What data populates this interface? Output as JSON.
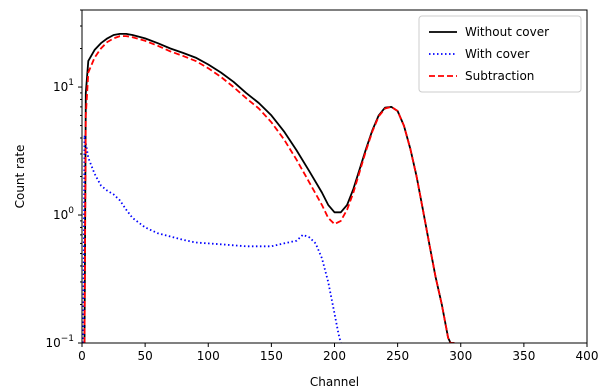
{
  "chart_data": {
    "type": "line",
    "xlabel": "Channel",
    "ylabel": "Count rate",
    "xlim": [
      0,
      400
    ],
    "ylim": [
      0.1,
      40
    ],
    "yscale": "log",
    "x_ticks": [
      0,
      50,
      100,
      150,
      200,
      250,
      300,
      350,
      400
    ],
    "y_ticks": [
      {
        "value": 0.1,
        "base": "10",
        "exp": "−1"
      },
      {
        "value": 1,
        "base": "10",
        "exp": "0"
      },
      {
        "value": 10,
        "base": "10",
        "exp": "1"
      }
    ],
    "grid": false,
    "legend_position": "top-right",
    "series": [
      {
        "name": "Without cover",
        "color": "#000000",
        "style": "solid",
        "x": [
          2,
          3,
          5,
          10,
          15,
          20,
          25,
          30,
          35,
          40,
          50,
          60,
          70,
          80,
          90,
          100,
          110,
          120,
          130,
          140,
          150,
          160,
          170,
          180,
          190,
          195,
          200,
          205,
          210,
          215,
          220,
          225,
          230,
          235,
          240,
          245,
          250,
          255,
          260,
          265,
          270,
          275,
          280,
          285,
          290,
          292,
          295
        ],
        "y": [
          0.1,
          9,
          16,
          19.5,
          22,
          24,
          25.5,
          26,
          26,
          25.5,
          24,
          22,
          20,
          18.5,
          17,
          15,
          13,
          11,
          9,
          7.5,
          6,
          4.5,
          3.2,
          2.2,
          1.5,
          1.2,
          1.05,
          1.05,
          1.2,
          1.6,
          2.3,
          3.3,
          4.6,
          6.0,
          6.9,
          7.0,
          6.5,
          5.0,
          3.3,
          2.0,
          1.1,
          0.6,
          0.33,
          0.2,
          0.11,
          0.1,
          0.1
        ]
      },
      {
        "name": "With cover",
        "color": "#0000ff",
        "style": "dotted",
        "x": [
          1,
          2,
          5,
          10,
          15,
          20,
          25,
          30,
          35,
          40,
          50,
          60,
          70,
          80,
          90,
          100,
          110,
          120,
          130,
          140,
          150,
          160,
          170,
          175,
          180,
          185,
          190,
          195,
          200,
          203,
          205
        ],
        "y": [
          0.1,
          4.2,
          2.8,
          2.1,
          1.7,
          1.55,
          1.45,
          1.3,
          1.1,
          0.95,
          0.8,
          0.72,
          0.68,
          0.64,
          0.61,
          0.6,
          0.59,
          0.58,
          0.57,
          0.57,
          0.57,
          0.6,
          0.63,
          0.7,
          0.67,
          0.6,
          0.46,
          0.3,
          0.17,
          0.12,
          0.1
        ]
      },
      {
        "name": "Subtraction",
        "color": "#ff0000",
        "style": "dashed",
        "x": [
          2,
          3,
          5,
          10,
          15,
          20,
          25,
          30,
          35,
          40,
          50,
          60,
          70,
          80,
          90,
          100,
          110,
          120,
          130,
          140,
          150,
          160,
          170,
          180,
          190,
          195,
          200,
          205,
          210,
          215,
          220,
          225,
          230,
          235,
          240,
          245,
          250,
          255,
          260,
          265,
          270,
          275,
          280,
          285,
          290,
          292,
          295
        ],
        "y": [
          0.1,
          6,
          13,
          17,
          20,
          22.5,
          24,
          25,
          25,
          24.5,
          23,
          21,
          19,
          17.5,
          16,
          14,
          12,
          10,
          8.2,
          6.8,
          5.3,
          3.9,
          2.7,
          1.8,
          1.2,
          0.95,
          0.85,
          0.9,
          1.1,
          1.5,
          2.2,
          3.2,
          4.5,
          5.9,
          6.8,
          7.0,
          6.5,
          5.0,
          3.3,
          2.0,
          1.1,
          0.6,
          0.33,
          0.2,
          0.11,
          0.1,
          0.1
        ]
      }
    ]
  }
}
